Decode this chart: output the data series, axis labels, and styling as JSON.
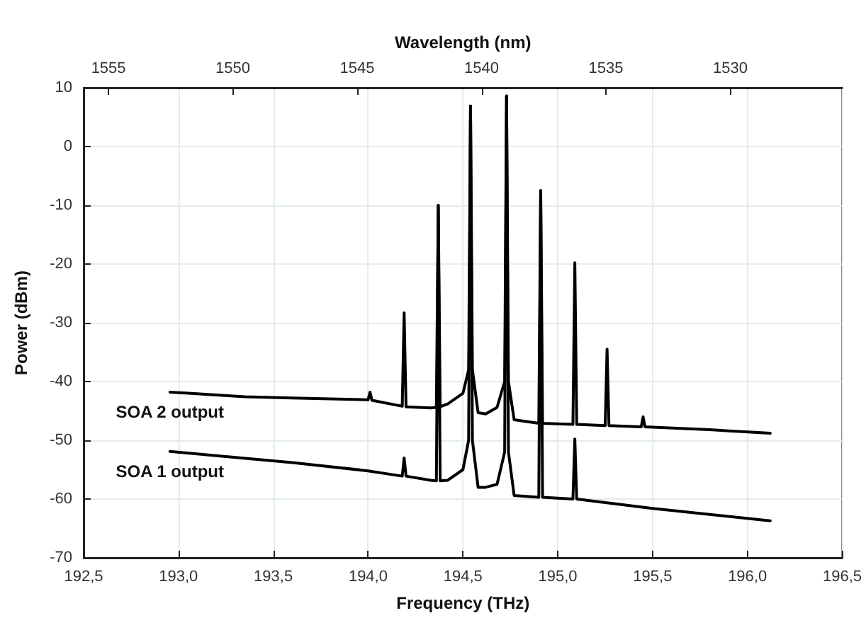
{
  "chart_data": {
    "type": "line",
    "xlabel": "Frequency (THz)",
    "ylabel": "Power (dBm)",
    "x2label": "Wavelength (nm)",
    "xlim": [
      192.5,
      196.5
    ],
    "xticks": [
      {
        "value": 192.5,
        "label": "192,5"
      },
      {
        "value": 193,
        "label": "193,0"
      },
      {
        "value": 193.5,
        "label": "193,5"
      },
      {
        "value": 194,
        "label": "194,0"
      },
      {
        "value": 194.5,
        "label": "194,5"
      },
      {
        "value": 195,
        "label": "195,0"
      },
      {
        "value": 195.5,
        "label": "195,5"
      },
      {
        "value": 196,
        "label": "196,0"
      },
      {
        "value": 196.5,
        "label": "196,5"
      }
    ],
    "ylim": [
      -70,
      10
    ],
    "yticks": [
      -70,
      -60,
      -50,
      -40,
      -30,
      -20,
      -10,
      0,
      10
    ],
    "x2lim": [
      1556,
      1525.5
    ],
    "x2ticks": [
      1555,
      1550,
      1545,
      1540,
      1535,
      1530
    ],
    "grid": true,
    "legend": false,
    "marker": "none",
    "line_style": "solid",
    "series": [
      {
        "name": "SOA 2 output",
        "color": "#000000",
        "x": [
          192.955,
          193.35,
          193.6,
          194.0,
          194.01,
          194.02,
          194.18,
          194.19,
          194.2,
          194.33,
          194.36,
          194.37,
          194.38,
          194.42,
          194.5,
          194.53,
          194.54,
          194.55,
          194.58,
          194.62,
          194.68,
          194.72,
          194.73,
          194.74,
          194.77,
          194.9,
          194.91,
          194.92,
          195.08,
          195.09,
          195.1,
          195.25,
          195.26,
          195.27,
          195.44,
          195.45,
          195.46,
          195.8,
          196.12
        ],
        "values": [
          -41.8,
          -42.6,
          -42.8,
          -43.1,
          -41.8,
          -43.2,
          -44.2,
          -28.3,
          -44.3,
          -44.5,
          -44.4,
          -10,
          -44.3,
          -43.8,
          -42,
          -38,
          6.9,
          -38,
          -45.3,
          -45.5,
          -44.4,
          -40,
          8.6,
          -40,
          -46.5,
          -47.1,
          -7.5,
          -47.1,
          -47.3,
          -19.8,
          -47.3,
          -47.5,
          -34.5,
          -47.5,
          -47.7,
          -46,
          -47.7,
          -48.2,
          -48.8
        ]
      },
      {
        "name": "SOA 1 output",
        "color": "#000000",
        "x": [
          192.955,
          193.23,
          193.6,
          194.0,
          194.18,
          194.19,
          194.2,
          194.33,
          194.36,
          194.37,
          194.38,
          194.42,
          194.5,
          194.53,
          194.54,
          194.55,
          194.58,
          194.62,
          194.68,
          194.72,
          194.73,
          194.74,
          194.77,
          194.9,
          194.91,
          194.92,
          195.08,
          195.09,
          195.1,
          195.5,
          196.12
        ],
        "values": [
          -51.9,
          -52.7,
          -53.8,
          -55.2,
          -56.1,
          -53,
          -56.1,
          -56.8,
          -56.9,
          -10,
          -56.9,
          -56.8,
          -55,
          -50,
          6.9,
          -50,
          -58,
          -58,
          -57.5,
          -52,
          8.6,
          -52,
          -59.4,
          -59.7,
          -7.5,
          -59.7,
          -60,
          -49.8,
          -60,
          -61.6,
          -63.7
        ]
      }
    ]
  }
}
